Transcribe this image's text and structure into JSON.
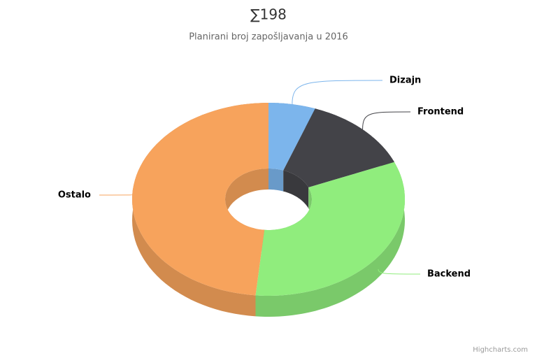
{
  "chart_data": {
    "type": "donut3d",
    "title": "∑198",
    "subtitle": "Planirani broj zapošljavanja u 2016",
    "categories": [
      "Dizajn",
      "Frontend",
      "Backend",
      "Ostalo"
    ],
    "values": [
      11,
      26,
      65,
      96
    ],
    "colors": [
      "#7cb5ec",
      "#434348",
      "#90ed7d",
      "#f7a35c"
    ],
    "credits": "Highcharts.com"
  }
}
